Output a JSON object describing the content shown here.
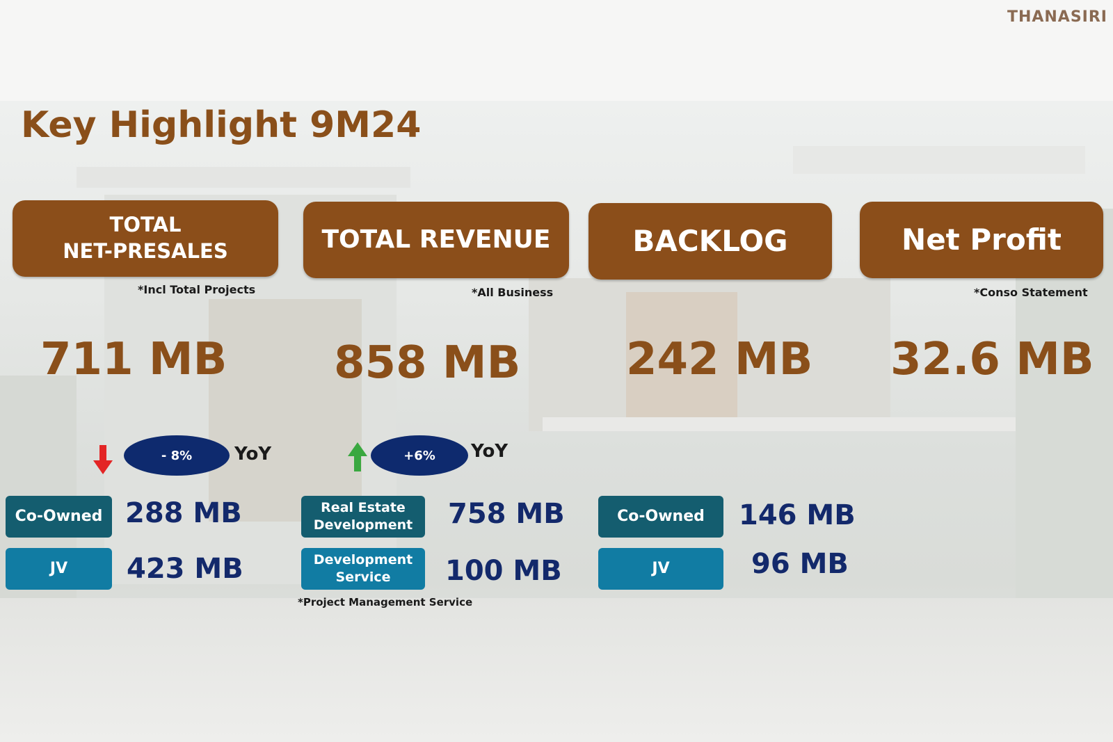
{
  "brand": "THANASIRI",
  "title": "Key Highlight 9M24",
  "cards": [
    {
      "label_line1": "TOTAL",
      "label_line2": "NET-PRESALES",
      "note": "*Incl Total Projects",
      "value": "711 MB"
    },
    {
      "label": "TOTAL REVENUE",
      "note": "*All Business",
      "value": "858 MB"
    },
    {
      "label": "BACKLOG",
      "value": "242 MB"
    },
    {
      "label": "Net Profit",
      "note": "*Conso Statement",
      "value": "32.6 MB"
    }
  ],
  "presales_change": {
    "direction": "down",
    "text": "- 8%",
    "suffix": "YoY",
    "arrow_color": "#e32525"
  },
  "revenue_change": {
    "direction": "up",
    "text": "+6%",
    "suffix": "YoY",
    "arrow_color": "#3aa840"
  },
  "presales_breakdown": [
    {
      "tag": "Co-Owned",
      "value": "288 MB"
    },
    {
      "tag": "JV",
      "value": "423 MB"
    }
  ],
  "revenue_breakdown": [
    {
      "tag_line1": "Real Estate",
      "tag_line2": "Development",
      "value": "758 MB"
    },
    {
      "tag_line1": "Development",
      "tag_line2": "Service",
      "value": "100 MB"
    }
  ],
  "revenue_footnote": "*Project Management Service",
  "backlog_breakdown": [
    {
      "tag": "Co-Owned",
      "value": "146 MB"
    },
    {
      "tag": "JV",
      "value": "96 MB"
    }
  ],
  "colors": {
    "brown": "#8b4e1a",
    "navy": "#0e2a6e",
    "teal_dark": "#145d6f",
    "teal_light": "#117ca3",
    "value_blue": "#13296b"
  }
}
